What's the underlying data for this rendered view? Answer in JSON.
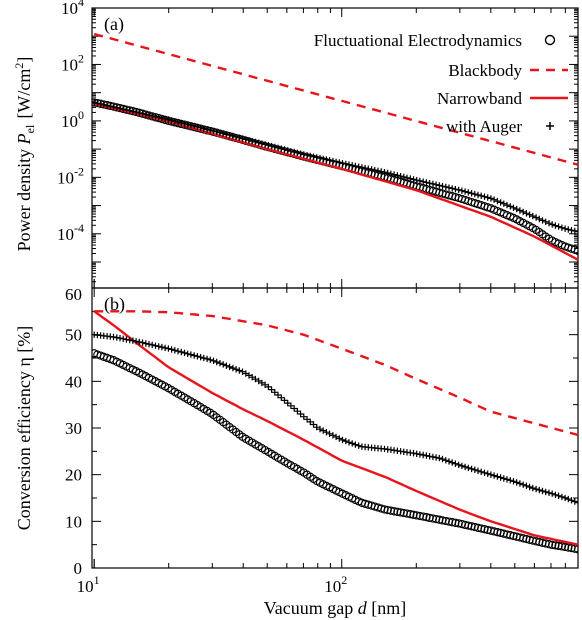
{
  "colors": {
    "red": "#e8141c",
    "black": "#000000"
  },
  "chart_data": [
    {
      "panel_label": "(a)",
      "type": "line",
      "xscale": "log",
      "yscale": "log",
      "xlim": [
        9.8,
        900
      ],
      "ylim": [
        1.2e-06,
        10000
      ],
      "ylabel": "Power density P_el [W/cm²]",
      "ylabel_main": "Power density ",
      "ylabel_sym": "P",
      "ylabel_sub": "el",
      "ylabel_unit_pre": "[W/cm",
      "ylabel_unit_sup": "2",
      "ylabel_unit_post": "]",
      "yticks": [
        {
          "value": 0.0001,
          "base": "10",
          "exp": "-4"
        },
        {
          "value": 0.01,
          "base": "10",
          "exp": "-2"
        },
        {
          "value": 1,
          "base": "10",
          "exp": "0"
        },
        {
          "value": 100,
          "base": "10",
          "exp": "2"
        },
        {
          "value": 10000,
          "base": "10",
          "exp": "4"
        }
      ],
      "legend_position": "top-right",
      "series": [
        {
          "name": "Fluctuational Electrodynamics",
          "style": "circle",
          "color": "#000000",
          "points": [
            [
              10,
              4.5
            ],
            [
              12,
              3.2
            ],
            [
              15,
              2.0
            ],
            [
              20,
              1.0
            ],
            [
              30,
              0.42
            ],
            [
              40,
              0.21
            ],
            [
              50,
              0.12
            ],
            [
              70,
              0.055
            ],
            [
              100,
              0.025
            ],
            [
              150,
              0.01
            ],
            [
              200,
              0.0048
            ],
            [
              300,
              0.0018
            ],
            [
              400,
              0.0008
            ],
            [
              500,
              0.00035
            ],
            [
              600,
              0.00015
            ],
            [
              700,
              6e-05
            ],
            [
              800,
              3.5e-05
            ],
            [
              900,
              2.5e-05
            ]
          ]
        },
        {
          "name": "Blackbody",
          "style": "dashed",
          "color": "#e8141c",
          "points": [
            [
              10,
              1200
            ],
            [
              900,
              0.028
            ]
          ]
        },
        {
          "name": "Narrowband",
          "style": "solid",
          "color": "#e8141c",
          "points": [
            [
              10,
              4.0
            ],
            [
              20,
              0.95
            ],
            [
              50,
              0.1
            ],
            [
              100,
              0.02
            ],
            [
              200,
              0.0035
            ],
            [
              400,
              0.0004
            ],
            [
              600,
              8e-05
            ],
            [
              900,
              1.2e-05
            ]
          ]
        },
        {
          "name": "with Auger",
          "style": "plus",
          "color": "#000000",
          "points": [
            [
              10,
              4.5
            ],
            [
              15,
              2.0
            ],
            [
              20,
              1.1
            ],
            [
              30,
              0.45
            ],
            [
              50,
              0.14
            ],
            [
              70,
              0.065
            ],
            [
              100,
              0.032
            ],
            [
              150,
              0.015
            ],
            [
              200,
              0.008
            ],
            [
              300,
              0.0035
            ],
            [
              400,
              0.0018
            ],
            [
              500,
              0.0008
            ],
            [
              600,
              0.0004
            ],
            [
              700,
              0.00022
            ],
            [
              800,
              0.00015
            ],
            [
              900,
              0.00012
            ]
          ]
        }
      ]
    },
    {
      "panel_label": "(b)",
      "type": "line",
      "xscale": "log",
      "yscale": "linear",
      "xlim": [
        9.8,
        900
      ],
      "ylim": [
        0,
        60
      ],
      "ylabel": "Conversion efficiency η [%]",
      "xlabel": "Vacuum gap d [nm]",
      "xlabel_main": "Vacuum gap ",
      "xlabel_sym": "d",
      "xlabel_unit": " [nm]",
      "yticks": [
        0,
        10,
        20,
        30,
        40,
        50,
        60
      ],
      "xticks": [
        {
          "value": 10,
          "base": "10",
          "exp": "1"
        },
        {
          "value": 100,
          "base": "10",
          "exp": "2"
        }
      ],
      "series": [
        {
          "name": "Fluctuational Electrodynamics",
          "style": "circle",
          "color": "#000000",
          "points": [
            [
              10,
              46
            ],
            [
              12,
              44.5
            ],
            [
              15,
              42
            ],
            [
              20,
              38.5
            ],
            [
              25,
              35.5
            ],
            [
              30,
              33
            ],
            [
              40,
              28
            ],
            [
              50,
              25
            ],
            [
              60,
              22.5
            ],
            [
              70,
              20.5
            ],
            [
              80,
              18.5
            ],
            [
              100,
              16
            ],
            [
              120,
              14
            ],
            [
              150,
              12.5
            ],
            [
              200,
              11.3
            ],
            [
              250,
              10.3
            ],
            [
              300,
              9.5
            ],
            [
              400,
              8
            ],
            [
              500,
              6.8
            ],
            [
              600,
              5.8
            ],
            [
              700,
              5
            ],
            [
              800,
              4.5
            ],
            [
              900,
              4
            ]
          ]
        },
        {
          "name": "Blackbody",
          "style": "dashed",
          "color": "#e8141c",
          "points": [
            [
              10,
              55
            ],
            [
              15,
              55
            ],
            [
              20,
              54.8
            ],
            [
              30,
              54
            ],
            [
              50,
              52
            ],
            [
              70,
              50
            ],
            [
              100,
              47
            ],
            [
              150,
              43.5
            ],
            [
              200,
              40.5
            ],
            [
              300,
              36.5
            ],
            [
              400,
              33.5
            ],
            [
              600,
              31
            ],
            [
              900,
              28.5
            ]
          ]
        },
        {
          "name": "Narrowband",
          "style": "solid",
          "color": "#e8141c",
          "points": [
            [
              10,
              55
            ],
            [
              12,
              52
            ],
            [
              15,
              48
            ],
            [
              20,
              43
            ],
            [
              30,
              37.5
            ],
            [
              40,
              34
            ],
            [
              50,
              31.5
            ],
            [
              70,
              27.5
            ],
            [
              100,
              23
            ],
            [
              150,
              19.5
            ],
            [
              200,
              16.5
            ],
            [
              300,
              12.5
            ],
            [
              400,
              10
            ],
            [
              600,
              7
            ],
            [
              900,
              5
            ]
          ]
        },
        {
          "name": "with Auger",
          "style": "plus",
          "color": "#000000",
          "points": [
            [
              10,
              50
            ],
            [
              12,
              49.5
            ],
            [
              15,
              48.5
            ],
            [
              20,
              47
            ],
            [
              30,
              44.5
            ],
            [
              40,
              42
            ],
            [
              50,
              39
            ],
            [
              60,
              35.5
            ],
            [
              70,
              32.5
            ],
            [
              80,
              30
            ],
            [
              100,
              27.5
            ],
            [
              120,
              26
            ],
            [
              150,
              25.5
            ],
            [
              200,
              24.5
            ],
            [
              250,
              23.5
            ],
            [
              300,
              22
            ],
            [
              400,
              20
            ],
            [
              500,
              18.5
            ],
            [
              600,
              17
            ],
            [
              700,
              16
            ],
            [
              800,
              15
            ],
            [
              900,
              14
            ]
          ]
        }
      ]
    }
  ]
}
